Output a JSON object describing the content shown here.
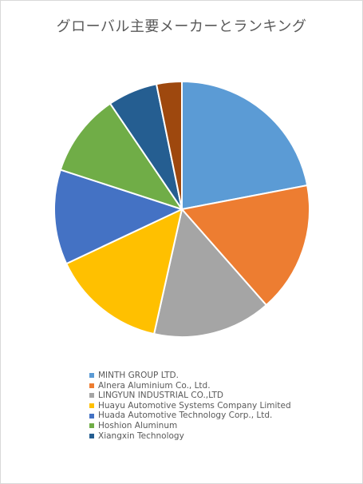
{
  "chart_data": {
    "type": "pie",
    "title": "グローバル主要メーカーとランキング",
    "legend_position": "bottom",
    "categories": [
      "MINTH GROUP LTD.",
      "Alnera Aluminium Co., Ltd.",
      "LINGYUN INDUSTRIAL CO.,LTD",
      "Huayu Automotive Systems Company Limited",
      "Huada Automotive Technology Corp., Ltd.",
      "Hoshion Aluminum",
      "Xiangxin Technology",
      ""
    ],
    "legend_entries": [
      "MINTH GROUP LTD.",
      "Alnera Aluminium Co., Ltd.",
      "LINGYUN INDUSTRIAL CO.,LTD",
      "Huayu Automotive Systems Company Limited",
      "Huada Automotive Technology Corp., Ltd.",
      "Hoshion Aluminum",
      "Xiangxin Technology"
    ],
    "values": [
      22.0,
      16.5,
      15.0,
      14.5,
      12.0,
      10.5,
      6.3,
      3.2
    ],
    "colors": [
      "#5b9bd5",
      "#ed7d31",
      "#a5a5a5",
      "#ffc000",
      "#4472c4",
      "#70ad47",
      "#255e91",
      "#9e480e"
    ]
  }
}
